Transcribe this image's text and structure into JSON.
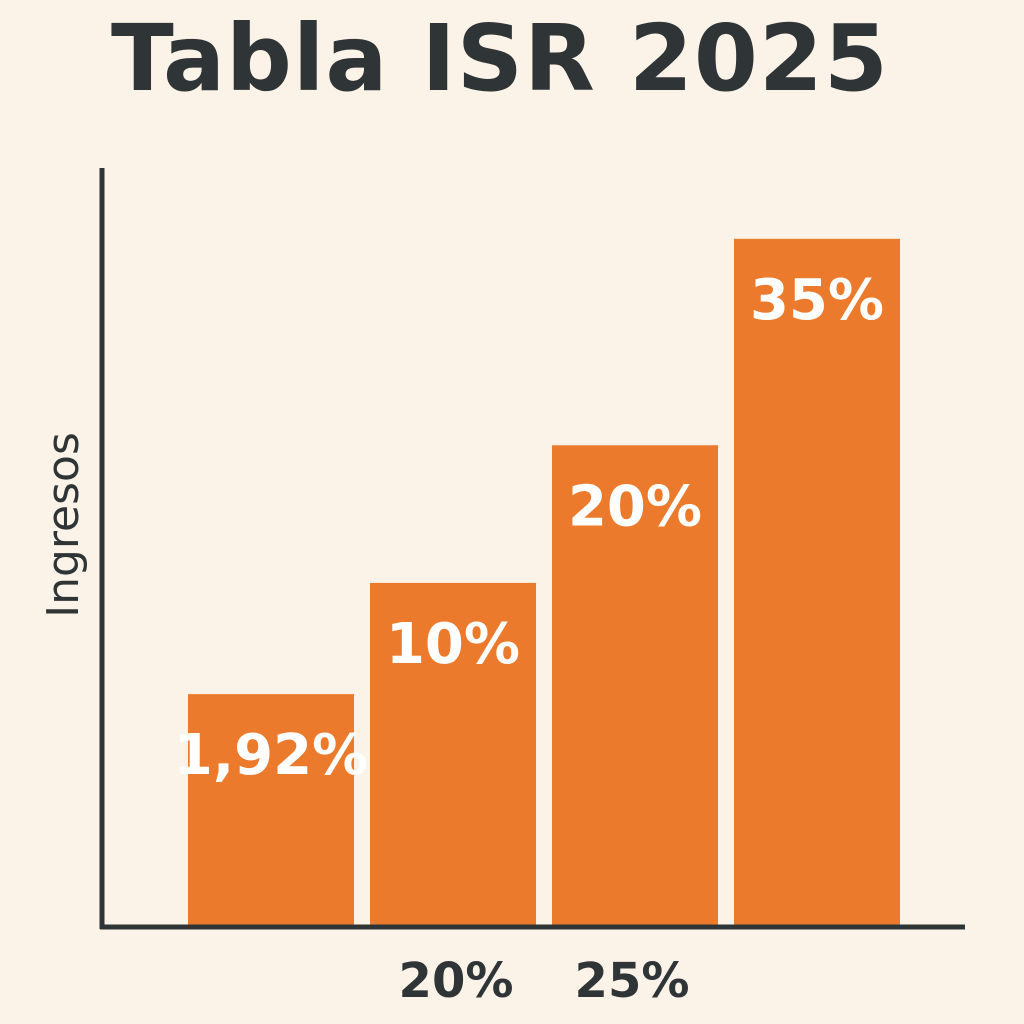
{
  "chart_data": {
    "type": "bar",
    "title": "Tabla ISR 2025",
    "xlabel": "",
    "ylabel": "Ingresos",
    "values": [
      1.92,
      10,
      20,
      35
    ],
    "bar_labels": [
      "1,92%",
      "10%",
      "20%",
      "35%"
    ],
    "x_tick_labels": [
      "",
      "20%",
      "25%",
      ""
    ],
    "ylim": [
      -15,
      40
    ],
    "grid": false,
    "legend": "none",
    "colors": {
      "bar": "#ec7a2c",
      "axis": "#2f3437",
      "text": "#2f3437",
      "bar_text": "#ffffff",
      "background": "#fbf3e7"
    }
  }
}
